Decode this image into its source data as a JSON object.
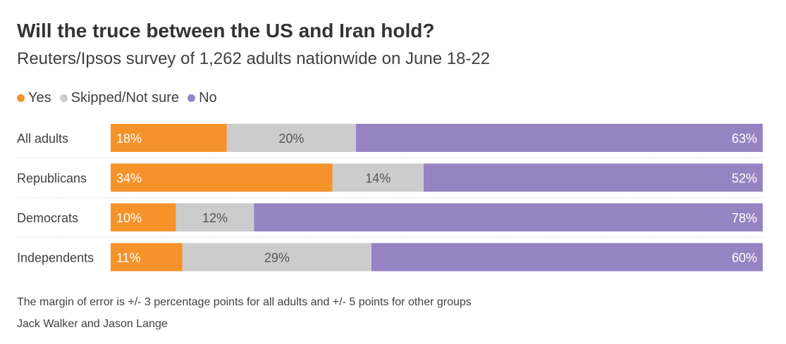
{
  "chart_data": {
    "type": "bar",
    "orientation": "horizontal",
    "stacked": true,
    "title": "Will the truce between the US and Iran hold?",
    "subtitle": "Reuters/Ipsos survey of 1,262 adults nationwide on June 18-22",
    "categories": [
      "All adults",
      "Republicans",
      "Democrats",
      "Independents"
    ],
    "series": [
      {
        "name": "Yes",
        "color": "#f5922a",
        "values": [
          18,
          34,
          10,
          11
        ]
      },
      {
        "name": "Skipped/Not sure",
        "color": "#cccccc",
        "values": [
          20,
          14,
          12,
          29
        ]
      },
      {
        "name": "No",
        "color": "#9583c2",
        "values": [
          63,
          52,
          78,
          60
        ]
      }
    ],
    "value_suffix": "%",
    "legend_position": "top-left",
    "grid": false
  },
  "footer": {
    "note": "The margin of error is +/- 3 percentage points for all adults and +/- 5 points for other groups",
    "credit": "Jack Walker and Jason Lange"
  }
}
